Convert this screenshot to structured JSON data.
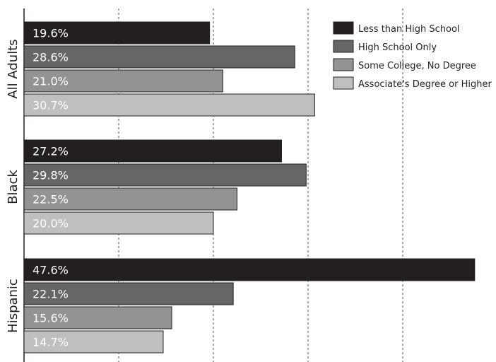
{
  "chart_data": {
    "type": "bar",
    "orientation": "horizontal",
    "categories": [
      "All Adults",
      "Black",
      "Hispanic"
    ],
    "series": [
      {
        "name": "Less than High School",
        "values": [
          19.6,
          27.2,
          47.6
        ],
        "color": "#231f20"
      },
      {
        "name": "High School Only",
        "values": [
          28.6,
          29.8,
          22.1
        ],
        "color": "#666666"
      },
      {
        "name": "Some College, No Degree",
        "values": [
          21.0,
          22.5,
          15.6
        ],
        "color": "#939393"
      },
      {
        "name": "Associate's Degree or Higher",
        "values": [
          30.7,
          20.0,
          14.7
        ],
        "color": "#bfbfbf"
      }
    ],
    "value_format": "0.0%",
    "xlim": [
      0,
      50
    ],
    "gridlines": [
      10,
      20,
      30,
      40,
      50
    ],
    "grid": true,
    "legend_position": "top-right",
    "title": "",
    "xlabel": "",
    "ylabel": ""
  }
}
